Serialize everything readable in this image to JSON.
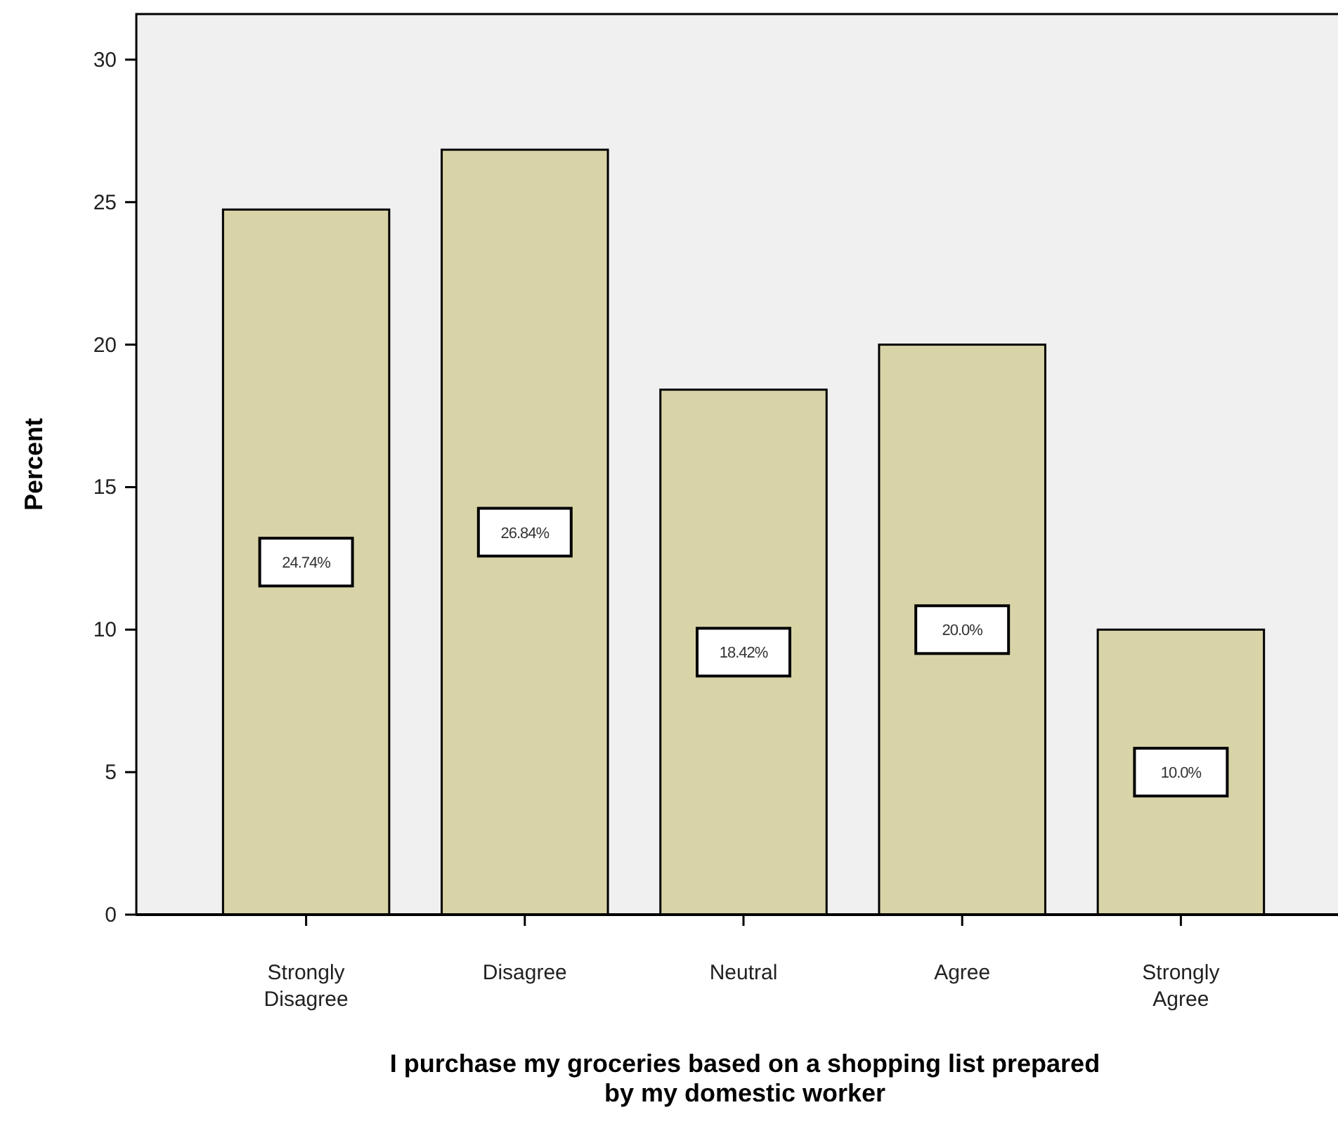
{
  "chart_data": {
    "type": "bar",
    "xlabel": "I purchase my groceries based on a shopping list prepared by my domestic worker",
    "ylabel": "Percent",
    "categories": [
      "Strongly Disagree",
      "Disagree",
      "Neutral",
      "Agree",
      "Strongly Agree"
    ],
    "values": [
      24.74,
      26.84,
      18.42,
      20.0,
      10.0
    ],
    "value_labels": [
      "24.74%",
      "26.84%",
      "18.42%",
      "20.0%",
      "10.0%"
    ],
    "color": "#d9d4a8",
    "ylim": [
      0,
      31.6
    ],
    "yticks": [
      0,
      5,
      10,
      15,
      20,
      25,
      30
    ],
    "grid": false
  }
}
